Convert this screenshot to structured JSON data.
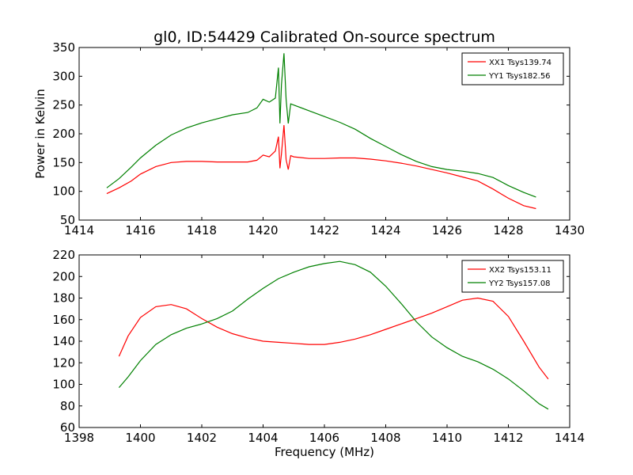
{
  "figure_title": "gl0, ID:54429 Calibrated On-source spectrum",
  "colors": {
    "xx": "#ff0000",
    "yy": "#008000"
  },
  "chart_data": [
    {
      "type": "line",
      "title": "gl0, ID:54429 Calibrated On-source spectrum",
      "xlabel": "",
      "ylabel": "Power in Kelvin",
      "xlim": [
        1414,
        1430
      ],
      "ylim": [
        50,
        350
      ],
      "xticks": [
        1414,
        1416,
        1418,
        1420,
        1422,
        1424,
        1426,
        1428,
        1430
      ],
      "yticks": [
        50,
        100,
        150,
        200,
        250,
        300,
        350
      ],
      "legend_position": "top-right",
      "grid": false,
      "series": [
        {
          "name": "XX1 Tsys139.74",
          "color": "#ff0000",
          "points": [
            [
              1414.9,
              96
            ],
            [
              1415.3,
              106
            ],
            [
              1415.7,
              118
            ],
            [
              1416.0,
              130
            ],
            [
              1416.5,
              143
            ],
            [
              1417.0,
              150
            ],
            [
              1417.5,
              152
            ],
            [
              1418.0,
              152
            ],
            [
              1418.5,
              151
            ],
            [
              1419.0,
              151
            ],
            [
              1419.5,
              151
            ],
            [
              1419.8,
              154
            ],
            [
              1420.0,
              163
            ],
            [
              1420.2,
              160
            ],
            [
              1420.4,
              170
            ],
            [
              1420.5,
              195
            ],
            [
              1420.55,
              140
            ],
            [
              1420.6,
              165
            ],
            [
              1420.68,
              215
            ],
            [
              1420.75,
              155
            ],
            [
              1420.82,
              138
            ],
            [
              1420.9,
              162
            ],
            [
              1421.0,
              160
            ],
            [
              1421.5,
              157
            ],
            [
              1422.0,
              157
            ],
            [
              1422.5,
              158
            ],
            [
              1423.0,
              158
            ],
            [
              1423.5,
              156
            ],
            [
              1424.0,
              153
            ],
            [
              1424.5,
              149
            ],
            [
              1425.0,
              144
            ],
            [
              1425.5,
              138
            ],
            [
              1426.0,
              132
            ],
            [
              1426.5,
              125
            ],
            [
              1427.0,
              118
            ],
            [
              1427.5,
              104
            ],
            [
              1428.0,
              88
            ],
            [
              1428.5,
              75
            ],
            [
              1428.9,
              70
            ]
          ]
        },
        {
          "name": "YY1 Tsys182.56",
          "color": "#008000",
          "points": [
            [
              1414.9,
              106
            ],
            [
              1415.3,
              122
            ],
            [
              1415.7,
              142
            ],
            [
              1416.0,
              158
            ],
            [
              1416.5,
              180
            ],
            [
              1417.0,
              198
            ],
            [
              1417.5,
              210
            ],
            [
              1418.0,
              219
            ],
            [
              1418.5,
              226
            ],
            [
              1419.0,
              233
            ],
            [
              1419.5,
              237
            ],
            [
              1419.8,
              245
            ],
            [
              1420.0,
              260
            ],
            [
              1420.2,
              255
            ],
            [
              1420.4,
              262
            ],
            [
              1420.5,
              315
            ],
            [
              1420.55,
              218
            ],
            [
              1420.6,
              285
            ],
            [
              1420.68,
              340
            ],
            [
              1420.75,
              260
            ],
            [
              1420.82,
              218
            ],
            [
              1420.9,
              252
            ],
            [
              1421.0,
              250
            ],
            [
              1421.5,
              240
            ],
            [
              1422.0,
              230
            ],
            [
              1422.5,
              220
            ],
            [
              1423.0,
              208
            ],
            [
              1423.5,
              192
            ],
            [
              1424.0,
              178
            ],
            [
              1424.5,
              164
            ],
            [
              1425.0,
              152
            ],
            [
              1425.5,
              143
            ],
            [
              1426.0,
              138
            ],
            [
              1426.5,
              135
            ],
            [
              1427.0,
              131
            ],
            [
              1427.5,
              124
            ],
            [
              1428.0,
              110
            ],
            [
              1428.5,
              98
            ],
            [
              1428.9,
              90
            ]
          ]
        }
      ]
    },
    {
      "type": "line",
      "title": "",
      "xlabel": "Frequency (MHz)",
      "ylabel": "",
      "xlim": [
        1398,
        1414
      ],
      "ylim": [
        60,
        220
      ],
      "xticks": [
        1398,
        1400,
        1402,
        1404,
        1406,
        1408,
        1410,
        1412,
        1414
      ],
      "yticks": [
        60,
        80,
        100,
        120,
        140,
        160,
        180,
        200,
        220
      ],
      "legend_position": "top-right",
      "grid": false,
      "series": [
        {
          "name": "XX2 Tsys153.11",
          "color": "#ff0000",
          "points": [
            [
              1399.3,
              126
            ],
            [
              1399.6,
              145
            ],
            [
              1400.0,
              162
            ],
            [
              1400.5,
              172
            ],
            [
              1401.0,
              174
            ],
            [
              1401.5,
              170
            ],
            [
              1402.0,
              161
            ],
            [
              1402.5,
              153
            ],
            [
              1403.0,
              147
            ],
            [
              1403.5,
              143
            ],
            [
              1404.0,
              140
            ],
            [
              1404.5,
              139
            ],
            [
              1405.0,
              138
            ],
            [
              1405.5,
              137
            ],
            [
              1406.0,
              137
            ],
            [
              1406.5,
              139
            ],
            [
              1407.0,
              142
            ],
            [
              1407.5,
              146
            ],
            [
              1408.0,
              151
            ],
            [
              1408.5,
              156
            ],
            [
              1409.0,
              161
            ],
            [
              1409.5,
              166
            ],
            [
              1410.0,
              172
            ],
            [
              1410.5,
              178
            ],
            [
              1411.0,
              180
            ],
            [
              1411.5,
              177
            ],
            [
              1412.0,
              163
            ],
            [
              1412.5,
              140
            ],
            [
              1413.0,
              116
            ],
            [
              1413.3,
              105
            ]
          ]
        },
        {
          "name": "YY2 Tsys157.08",
          "color": "#008000",
          "points": [
            [
              1399.3,
              97
            ],
            [
              1399.6,
              107
            ],
            [
              1400.0,
              122
            ],
            [
              1400.5,
              137
            ],
            [
              1401.0,
              146
            ],
            [
              1401.5,
              152
            ],
            [
              1402.0,
              156
            ],
            [
              1402.5,
              161
            ],
            [
              1403.0,
              168
            ],
            [
              1403.5,
              179
            ],
            [
              1404.0,
              189
            ],
            [
              1404.5,
              198
            ],
            [
              1405.0,
              204
            ],
            [
              1405.5,
              209
            ],
            [
              1406.0,
              212
            ],
            [
              1406.5,
              214
            ],
            [
              1407.0,
              211
            ],
            [
              1407.5,
              204
            ],
            [
              1408.0,
              191
            ],
            [
              1408.5,
              175
            ],
            [
              1409.0,
              158
            ],
            [
              1409.5,
              144
            ],
            [
              1410.0,
              134
            ],
            [
              1410.5,
              126
            ],
            [
              1411.0,
              121
            ],
            [
              1411.5,
              114
            ],
            [
              1412.0,
              105
            ],
            [
              1412.5,
              94
            ],
            [
              1413.0,
              82
            ],
            [
              1413.3,
              77
            ]
          ]
        }
      ]
    }
  ]
}
